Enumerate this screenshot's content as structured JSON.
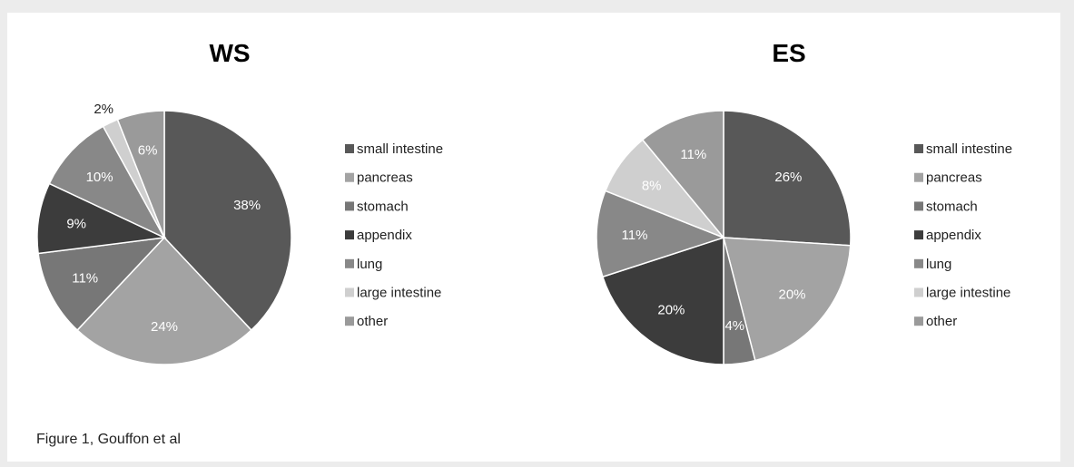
{
  "caption": "Figure 1, Gouffon et al",
  "colors": {
    "small intestine": "#585858",
    "pancreas": "#a3a3a3",
    "stomach": "#777777",
    "appendix": "#3c3c3c",
    "lung": "#888888",
    "large intestine": "#cfcfcf",
    "other": "#9a9a9a"
  },
  "chart_data": [
    {
      "type": "pie",
      "title": "WS",
      "categories": [
        "small intestine",
        "pancreas",
        "stomach",
        "appendix",
        "lung",
        "large intestine",
        "other"
      ],
      "values": [
        38,
        24,
        11,
        9,
        10,
        2,
        6
      ],
      "labels": [
        "38%",
        "24%",
        "11%",
        "9%",
        "10%",
        "2%",
        "6%"
      ],
      "legend": "right"
    },
    {
      "type": "pie",
      "title": "ES",
      "categories": [
        "small intestine",
        "pancreas",
        "stomach",
        "appendix",
        "lung",
        "large intestine",
        "other"
      ],
      "values": [
        26,
        20,
        4,
        20,
        11,
        8,
        11
      ],
      "labels": [
        "26%",
        "20%",
        "4%",
        "20%",
        "11%",
        "8%",
        "11%"
      ],
      "legend": "right"
    }
  ]
}
